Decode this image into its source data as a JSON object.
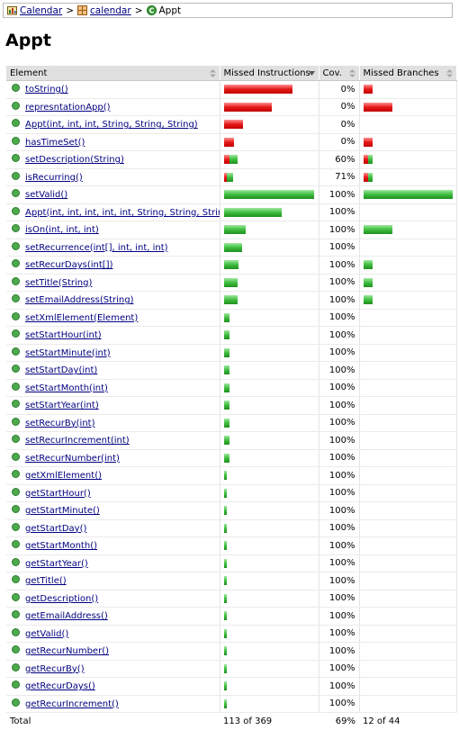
{
  "breadcrumb": {
    "root": "Calendar",
    "package": "calendar",
    "current": "Appt",
    "separator": ">"
  },
  "title": "Appt",
  "columns": {
    "element": "Element",
    "missed_instructions": "Missed Instructions",
    "coverage": "Cov.",
    "missed_branches": "Missed Branches"
  },
  "rows": [
    {
      "name": "toString()",
      "cov": "0%",
      "ir": 0.76,
      "ig": 0,
      "br": 0.1,
      "bg": 0
    },
    {
      "name": "represntationApp()",
      "cov": "0%",
      "ir": 0.53,
      "ig": 0,
      "br": 0.32,
      "bg": 0
    },
    {
      "name": "Appt(int, int, int, String, String, String)",
      "cov": "0%",
      "ir": 0.21,
      "ig": 0,
      "br": 0,
      "bg": 0
    },
    {
      "name": "hasTimeSet()",
      "cov": "0%",
      "ir": 0.11,
      "ig": 0,
      "br": 0.1,
      "bg": 0
    },
    {
      "name": "setDescription(String)",
      "cov": "60%",
      "ir": 0.06,
      "ig": 0.09,
      "br": 0.05,
      "bg": 0.05
    },
    {
      "name": "isRecurring()",
      "cov": "71%",
      "ir": 0.03,
      "ig": 0.07,
      "br": 0.05,
      "bg": 0.05
    },
    {
      "name": "setValid()",
      "cov": "100%",
      "ir": 0,
      "ig": 1.0,
      "br": 0,
      "bg": 1.0
    },
    {
      "name": "Appt(int, int, int, int, int, String, String, String)",
      "cov": "100%",
      "ir": 0,
      "ig": 0.64,
      "br": 0,
      "bg": 0
    },
    {
      "name": "isOn(int, int, int)",
      "cov": "100%",
      "ir": 0,
      "ig": 0.24,
      "br": 0,
      "bg": 0.32
    },
    {
      "name": "setRecurrence(int[], int, int, int)",
      "cov": "100%",
      "ir": 0,
      "ig": 0.2,
      "br": 0,
      "bg": 0
    },
    {
      "name": "setRecurDays(int[])",
      "cov": "100%",
      "ir": 0,
      "ig": 0.16,
      "br": 0,
      "bg": 0.1
    },
    {
      "name": "setTitle(String)",
      "cov": "100%",
      "ir": 0,
      "ig": 0.15,
      "br": 0,
      "bg": 0.1
    },
    {
      "name": "setEmailAddress(String)",
      "cov": "100%",
      "ir": 0,
      "ig": 0.15,
      "br": 0,
      "bg": 0.1
    },
    {
      "name": "setXmlElement(Element)",
      "cov": "100%",
      "ir": 0,
      "ig": 0.06,
      "br": 0,
      "bg": 0
    },
    {
      "name": "setStartHour(int)",
      "cov": "100%",
      "ir": 0,
      "ig": 0.06,
      "br": 0,
      "bg": 0
    },
    {
      "name": "setStartMinute(int)",
      "cov": "100%",
      "ir": 0,
      "ig": 0.06,
      "br": 0,
      "bg": 0
    },
    {
      "name": "setStartDay(int)",
      "cov": "100%",
      "ir": 0,
      "ig": 0.06,
      "br": 0,
      "bg": 0
    },
    {
      "name": "setStartMonth(int)",
      "cov": "100%",
      "ir": 0,
      "ig": 0.06,
      "br": 0,
      "bg": 0
    },
    {
      "name": "setStartYear(int)",
      "cov": "100%",
      "ir": 0,
      "ig": 0.06,
      "br": 0,
      "bg": 0
    },
    {
      "name": "setRecurBy(int)",
      "cov": "100%",
      "ir": 0,
      "ig": 0.06,
      "br": 0,
      "bg": 0
    },
    {
      "name": "setRecurIncrement(int)",
      "cov": "100%",
      "ir": 0,
      "ig": 0.06,
      "br": 0,
      "bg": 0
    },
    {
      "name": "setRecurNumber(int)",
      "cov": "100%",
      "ir": 0,
      "ig": 0.06,
      "br": 0,
      "bg": 0
    },
    {
      "name": "getXmlElement()",
      "cov": "100%",
      "ir": 0,
      "ig": 0.03,
      "br": 0,
      "bg": 0
    },
    {
      "name": "getStartHour()",
      "cov": "100%",
      "ir": 0,
      "ig": 0.03,
      "br": 0,
      "bg": 0
    },
    {
      "name": "getStartMinute()",
      "cov": "100%",
      "ir": 0,
      "ig": 0.03,
      "br": 0,
      "bg": 0
    },
    {
      "name": "getStartDay()",
      "cov": "100%",
      "ir": 0,
      "ig": 0.03,
      "br": 0,
      "bg": 0
    },
    {
      "name": "getStartMonth()",
      "cov": "100%",
      "ir": 0,
      "ig": 0.03,
      "br": 0,
      "bg": 0
    },
    {
      "name": "getStartYear()",
      "cov": "100%",
      "ir": 0,
      "ig": 0.03,
      "br": 0,
      "bg": 0
    },
    {
      "name": "getTitle()",
      "cov": "100%",
      "ir": 0,
      "ig": 0.03,
      "br": 0,
      "bg": 0
    },
    {
      "name": "getDescription()",
      "cov": "100%",
      "ir": 0,
      "ig": 0.03,
      "br": 0,
      "bg": 0
    },
    {
      "name": "getEmailAddress()",
      "cov": "100%",
      "ir": 0,
      "ig": 0.03,
      "br": 0,
      "bg": 0
    },
    {
      "name": "getValid()",
      "cov": "100%",
      "ir": 0,
      "ig": 0.03,
      "br": 0,
      "bg": 0
    },
    {
      "name": "getRecurNumber()",
      "cov": "100%",
      "ir": 0,
      "ig": 0.03,
      "br": 0,
      "bg": 0
    },
    {
      "name": "getRecurBy()",
      "cov": "100%",
      "ir": 0,
      "ig": 0.03,
      "br": 0,
      "bg": 0
    },
    {
      "name": "getRecurDays()",
      "cov": "100%",
      "ir": 0,
      "ig": 0.03,
      "br": 0,
      "bg": 0
    },
    {
      "name": "getRecurIncrement()",
      "cov": "100%",
      "ir": 0,
      "ig": 0.03,
      "br": 0,
      "bg": 0
    }
  ],
  "total": {
    "label": "Total",
    "instructions": "113 of 369",
    "coverage": "69%",
    "branches": "12 of 44"
  },
  "colors": {
    "missed": "#e51a1a",
    "covered": "#3fbe3f",
    "link": "#000080",
    "header_bg": "#e0e0e0"
  }
}
